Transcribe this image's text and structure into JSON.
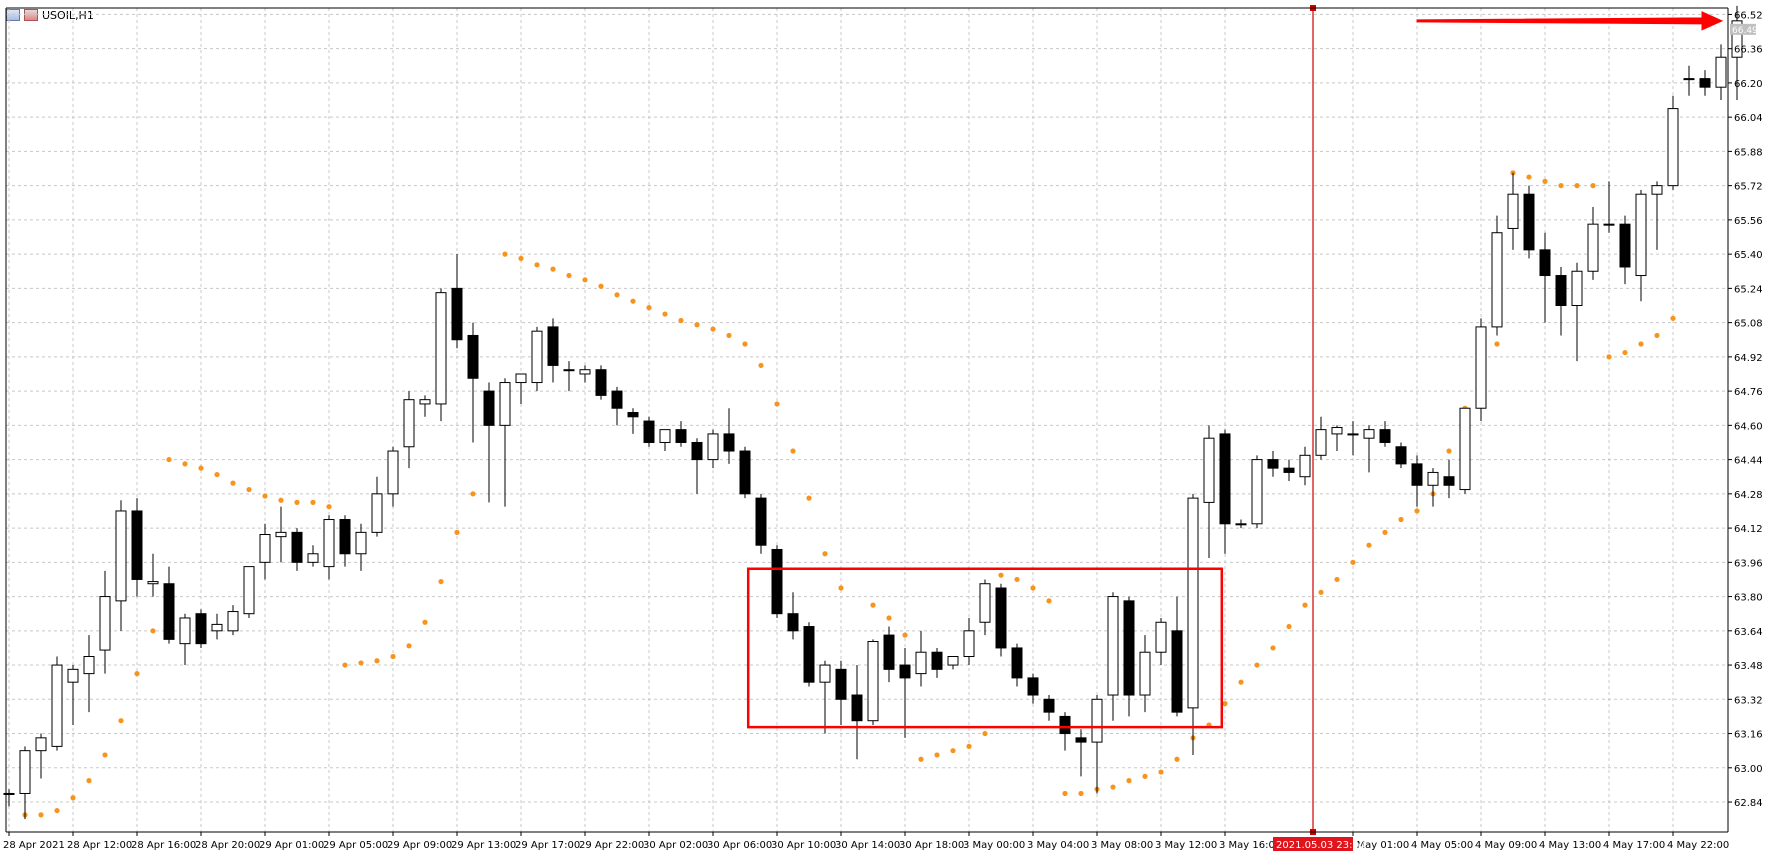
{
  "window": {
    "symbol_title": "USOIL,H1"
  },
  "colors": {
    "background": "#ffffff",
    "grid": "#c8c8c8",
    "axis": "#000000",
    "candle_up_fill": "#ffffff",
    "candle_down_fill": "#000000",
    "candle_outline": "#000000",
    "psar": "#f7941d",
    "annotation": "#ff0000",
    "vline": "#d00000",
    "time_badge_bg": "#e0141a",
    "price_badge_bg": "#c0c0c0"
  },
  "icons": [
    "chart-window-icon",
    "chart-window-icon-2"
  ],
  "chart_data": {
    "type": "candlestick",
    "symbol": "USOIL",
    "timeframe": "H1",
    "grid": true,
    "ylim": [
      62.7,
      66.55
    ],
    "y_ticks": [
      62.84,
      63.0,
      63.16,
      63.32,
      63.48,
      63.64,
      63.8,
      63.96,
      64.12,
      64.28,
      64.44,
      64.6,
      64.76,
      64.92,
      65.08,
      65.24,
      65.4,
      65.56,
      65.72,
      65.88,
      66.04,
      66.2,
      66.36,
      66.52
    ],
    "y_tick_labels": [
      "62.84",
      "63.00",
      "63.16",
      "63.32",
      "63.48",
      "63.64",
      "63.80",
      "63.96",
      "64.12",
      "64.28",
      "64.44",
      "64.60",
      "64.76",
      "64.92",
      "65.08",
      "65.24",
      "65.40",
      "65.56",
      "65.72",
      "65.88",
      "66.04",
      "66.20",
      "66.36",
      "66.52"
    ],
    "current_price_label": "66.49",
    "x_ticks": [
      {
        "index": 0,
        "label": "28 Apr 2021"
      },
      {
        "index": 4,
        "label": "28 Apr 12:00"
      },
      {
        "index": 8,
        "label": "28 Apr 16:00"
      },
      {
        "index": 12,
        "label": "28 Apr 20:00"
      },
      {
        "index": 16,
        "label": "29 Apr 01:00"
      },
      {
        "index": 20,
        "label": "29 Apr 05:00"
      },
      {
        "index": 24,
        "label": "29 Apr 09:00"
      },
      {
        "index": 28,
        "label": "29 Apr 13:00"
      },
      {
        "index": 32,
        "label": "29 Apr 17:00"
      },
      {
        "index": 36,
        "label": "29 Apr 22:00"
      },
      {
        "index": 40,
        "label": "30 Apr 02:00"
      },
      {
        "index": 44,
        "label": "30 Apr 06:00"
      },
      {
        "index": 48,
        "label": "30 Apr 10:00"
      },
      {
        "index": 52,
        "label": "30 Apr 14:00"
      },
      {
        "index": 56,
        "label": "30 Apr 18:00"
      },
      {
        "index": 60,
        "label": "3 May 00:00"
      },
      {
        "index": 64,
        "label": "3 May 04:00"
      },
      {
        "index": 68,
        "label": "3 May 08:00"
      },
      {
        "index": 72,
        "label": "3 May 12:00"
      },
      {
        "index": 76,
        "label": "3 May 16:00"
      },
      {
        "index": 84,
        "label": "4 May 01:00"
      },
      {
        "index": 88,
        "label": "4 May 05:00"
      },
      {
        "index": 92,
        "label": "4 May 09:00"
      },
      {
        "index": 96,
        "label": "4 May 13:00"
      },
      {
        "index": 100,
        "label": "4 May 17:00"
      },
      {
        "index": 104,
        "label": "4 May 22:00"
      }
    ],
    "highlight_time": {
      "index": 81.5,
      "label": "2021.05.03 23:00"
    },
    "candles": [
      [
        62.88,
        62.9,
        62.82,
        62.88
      ],
      [
        62.88,
        63.1,
        62.76,
        63.08
      ],
      [
        63.08,
        63.16,
        62.95,
        63.14
      ],
      [
        63.1,
        63.52,
        63.08,
        63.48
      ],
      [
        63.4,
        63.48,
        63.2,
        63.46
      ],
      [
        63.44,
        63.62,
        63.26,
        63.52
      ],
      [
        63.55,
        63.92,
        63.44,
        63.8
      ],
      [
        63.78,
        64.25,
        63.64,
        64.2
      ],
      [
        64.2,
        64.26,
        63.8,
        63.88
      ],
      [
        63.86,
        64.0,
        63.8,
        63.87
      ],
      [
        63.86,
        63.94,
        63.58,
        63.6
      ],
      [
        63.58,
        63.72,
        63.48,
        63.7
      ],
      [
        63.72,
        63.74,
        63.56,
        63.58
      ],
      [
        63.64,
        63.72,
        63.6,
        63.67
      ],
      [
        63.64,
        63.76,
        63.62,
        63.73
      ],
      [
        63.72,
        63.94,
        63.7,
        63.94
      ],
      [
        63.96,
        64.14,
        63.88,
        64.09
      ],
      [
        64.08,
        64.22,
        63.96,
        64.1
      ],
      [
        64.1,
        64.12,
        63.92,
        63.96
      ],
      [
        63.96,
        64.04,
        63.94,
        64.0
      ],
      [
        63.94,
        64.18,
        63.88,
        64.16
      ],
      [
        64.16,
        64.18,
        63.94,
        64.0
      ],
      [
        64.0,
        64.14,
        63.92,
        64.1
      ],
      [
        64.1,
        64.36,
        64.08,
        64.28
      ],
      [
        64.28,
        64.5,
        64.22,
        64.48
      ],
      [
        64.5,
        64.76,
        64.4,
        64.72
      ],
      [
        64.7,
        64.74,
        64.64,
        64.72
      ],
      [
        64.7,
        65.24,
        64.62,
        65.22
      ],
      [
        65.24,
        65.4,
        64.96,
        65.0
      ],
      [
        65.02,
        65.08,
        64.52,
        64.82
      ],
      [
        64.76,
        64.8,
        64.24,
        64.6
      ],
      [
        64.6,
        64.82,
        64.22,
        64.8
      ],
      [
        64.8,
        64.84,
        64.7,
        64.84
      ],
      [
        64.8,
        65.06,
        64.76,
        65.04
      ],
      [
        65.06,
        65.1,
        64.8,
        64.88
      ],
      [
        64.86,
        64.9,
        64.76,
        64.86
      ],
      [
        64.84,
        64.88,
        64.8,
        64.86
      ],
      [
        64.86,
        64.88,
        64.72,
        64.74
      ],
      [
        64.76,
        64.78,
        64.6,
        64.68
      ],
      [
        64.66,
        64.68,
        64.56,
        64.64
      ],
      [
        64.62,
        64.64,
        64.5,
        64.52
      ],
      [
        64.52,
        64.58,
        64.48,
        64.58
      ],
      [
        64.58,
        64.62,
        64.5,
        64.52
      ],
      [
        64.52,
        64.54,
        64.28,
        64.44
      ],
      [
        64.44,
        64.58,
        64.4,
        64.56
      ],
      [
        64.56,
        64.68,
        64.42,
        64.48
      ],
      [
        64.48,
        64.5,
        64.26,
        64.28
      ],
      [
        64.26,
        64.28,
        64.0,
        64.04
      ],
      [
        64.02,
        64.04,
        63.7,
        63.72
      ],
      [
        63.72,
        63.82,
        63.6,
        63.64
      ],
      [
        63.66,
        63.68,
        63.38,
        63.4
      ],
      [
        63.4,
        63.5,
        63.16,
        63.48
      ],
      [
        63.46,
        63.5,
        63.2,
        63.32
      ],
      [
        63.34,
        63.48,
        63.04,
        63.22
      ],
      [
        63.22,
        63.6,
        63.2,
        63.59
      ],
      [
        63.62,
        63.66,
        63.4,
        63.46
      ],
      [
        63.48,
        63.56,
        63.14,
        63.42
      ],
      [
        63.44,
        63.64,
        63.38,
        63.54
      ],
      [
        63.54,
        63.56,
        63.42,
        63.46
      ],
      [
        63.48,
        63.52,
        63.46,
        63.52
      ],
      [
        63.52,
        63.7,
        63.48,
        63.64
      ],
      [
        63.68,
        63.88,
        63.62,
        63.86
      ],
      [
        63.84,
        63.86,
        63.52,
        63.56
      ],
      [
        63.56,
        63.58,
        63.38,
        63.42
      ],
      [
        63.42,
        63.44,
        63.3,
        63.34
      ],
      [
        63.32,
        63.34,
        63.22,
        63.26
      ],
      [
        63.24,
        63.26,
        63.08,
        63.16
      ],
      [
        63.14,
        63.18,
        62.96,
        63.12
      ],
      [
        63.12,
        63.34,
        62.88,
        63.32
      ],
      [
        63.34,
        63.82,
        63.22,
        63.8
      ],
      [
        63.78,
        63.8,
        63.24,
        63.34
      ],
      [
        63.34,
        63.62,
        63.26,
        63.54
      ],
      [
        63.54,
        63.7,
        63.48,
        63.68
      ],
      [
        63.64,
        63.8,
        63.24,
        63.26
      ],
      [
        63.28,
        64.28,
        63.06,
        64.26
      ],
      [
        64.24,
        64.6,
        63.98,
        64.54
      ],
      [
        64.56,
        64.58,
        64.0,
        64.14
      ],
      [
        64.14,
        64.16,
        64.12,
        64.14
      ],
      [
        64.14,
        64.46,
        64.12,
        64.44
      ],
      [
        64.44,
        64.48,
        64.36,
        64.4
      ],
      [
        64.4,
        64.44,
        64.34,
        64.38
      ],
      [
        64.36,
        64.5,
        64.32,
        64.46
      ],
      [
        64.46,
        64.64,
        64.44,
        64.58
      ],
      [
        64.56,
        64.6,
        64.48,
        64.59
      ],
      [
        64.56,
        64.62,
        64.46,
        64.56
      ],
      [
        64.54,
        64.6,
        64.38,
        64.58
      ],
      [
        64.58,
        64.62,
        64.5,
        64.52
      ],
      [
        64.5,
        64.52,
        64.4,
        64.42
      ],
      [
        64.42,
        64.46,
        64.22,
        64.32
      ],
      [
        64.32,
        64.4,
        64.22,
        64.38
      ],
      [
        64.36,
        64.44,
        64.26,
        64.32
      ],
      [
        64.3,
        64.68,
        64.28,
        64.68
      ],
      [
        64.68,
        65.1,
        64.62,
        65.06
      ],
      [
        65.06,
        65.58,
        65.02,
        65.5
      ],
      [
        65.52,
        65.78,
        65.42,
        65.68
      ],
      [
        65.68,
        65.72,
        65.38,
        65.42
      ],
      [
        65.42,
        65.5,
        65.08,
        65.3
      ],
      [
        65.3,
        65.34,
        65.02,
        65.16
      ],
      [
        65.16,
        65.36,
        64.9,
        65.32
      ],
      [
        65.32,
        65.62,
        65.28,
        65.54
      ],
      [
        65.54,
        65.74,
        65.5,
        65.54
      ],
      [
        65.54,
        65.58,
        65.26,
        65.34
      ],
      [
        65.3,
        65.7,
        65.18,
        65.68
      ],
      [
        65.68,
        65.74,
        65.42,
        65.72
      ],
      [
        65.72,
        66.14,
        65.7,
        66.08
      ],
      [
        66.22,
        66.28,
        66.14,
        66.22
      ],
      [
        66.22,
        66.26,
        66.14,
        66.18
      ],
      [
        66.18,
        66.38,
        66.12,
        66.32
      ],
      [
        66.32,
        66.56,
        66.12,
        66.49
      ]
    ],
    "psar": [
      [
        1,
        62.78
      ],
      [
        2,
        62.78
      ],
      [
        3,
        62.8
      ],
      [
        4,
        62.86
      ],
      [
        5,
        62.94
      ],
      [
        6,
        63.06
      ],
      [
        7,
        63.22
      ],
      [
        8,
        63.44
      ],
      [
        9,
        63.64
      ],
      [
        10,
        64.44
      ],
      [
        11,
        64.42
      ],
      [
        12,
        64.4
      ],
      [
        13,
        64.37
      ],
      [
        14,
        64.33
      ],
      [
        15,
        64.3
      ],
      [
        16,
        64.27
      ],
      [
        17,
        64.25
      ],
      [
        18,
        64.24
      ],
      [
        19,
        64.24
      ],
      [
        20,
        64.22
      ],
      [
        21,
        63.48
      ],
      [
        22,
        63.49
      ],
      [
        23,
        63.5
      ],
      [
        24,
        63.52
      ],
      [
        25,
        63.57
      ],
      [
        26,
        63.68
      ],
      [
        27,
        63.87
      ],
      [
        28,
        64.1
      ],
      [
        29,
        64.28
      ],
      [
        31,
        65.4
      ],
      [
        32,
        65.38
      ],
      [
        33,
        65.35
      ],
      [
        34,
        65.33
      ],
      [
        35,
        65.3
      ],
      [
        36,
        65.28
      ],
      [
        37,
        65.25
      ],
      [
        38,
        65.21
      ],
      [
        39,
        65.18
      ],
      [
        40,
        65.15
      ],
      [
        41,
        65.12
      ],
      [
        42,
        65.09
      ],
      [
        43,
        65.07
      ],
      [
        44,
        65.05
      ],
      [
        45,
        65.02
      ],
      [
        46,
        64.98
      ],
      [
        47,
        64.88
      ],
      [
        48,
        64.7
      ],
      [
        49,
        64.48
      ],
      [
        50,
        64.26
      ],
      [
        51,
        64.0
      ],
      [
        52,
        63.84
      ],
      [
        54,
        63.76
      ],
      [
        55,
        63.7
      ],
      [
        56,
        63.62
      ],
      [
        57,
        63.04
      ],
      [
        58,
        63.06
      ],
      [
        59,
        63.08
      ],
      [
        60,
        63.1
      ],
      [
        61,
        63.16
      ],
      [
        62,
        63.9
      ],
      [
        63,
        63.88
      ],
      [
        64,
        63.84
      ],
      [
        65,
        63.78
      ],
      [
        66,
        62.88
      ],
      [
        67,
        62.88
      ],
      [
        68,
        62.9
      ],
      [
        69,
        62.91
      ],
      [
        70,
        62.94
      ],
      [
        71,
        62.96
      ],
      [
        72,
        62.98
      ],
      [
        73,
        63.04
      ],
      [
        74,
        63.14
      ],
      [
        75,
        63.2
      ],
      [
        76,
        63.3
      ],
      [
        77,
        63.4
      ],
      [
        78,
        63.48
      ],
      [
        79,
        63.56
      ],
      [
        80,
        63.66
      ],
      [
        81,
        63.76
      ],
      [
        82,
        63.82
      ],
      [
        83,
        63.88
      ],
      [
        84,
        63.96
      ],
      [
        85,
        64.04
      ],
      [
        86,
        64.1
      ],
      [
        87,
        64.16
      ],
      [
        88,
        64.2
      ],
      [
        89,
        64.28
      ],
      [
        90,
        64.48
      ],
      [
        91,
        64.68
      ],
      [
        92,
        64.86
      ],
      [
        93,
        64.98
      ],
      [
        94,
        65.78
      ],
      [
        95,
        65.76
      ],
      [
        96,
        65.74
      ],
      [
        97,
        65.72
      ],
      [
        98,
        65.72
      ],
      [
        99,
        65.72
      ],
      [
        100,
        64.92
      ],
      [
        101,
        64.94
      ],
      [
        102,
        64.98
      ],
      [
        103,
        65.02
      ],
      [
        104,
        65.1
      ]
    ],
    "annotations": [
      {
        "kind": "rectangle",
        "x_from": 46.2,
        "x_to": 75.8,
        "y_from": 63.19,
        "y_to": 63.93
      },
      {
        "kind": "arrow",
        "x_from": 88,
        "x_to": 108,
        "y": 66.49
      }
    ]
  }
}
